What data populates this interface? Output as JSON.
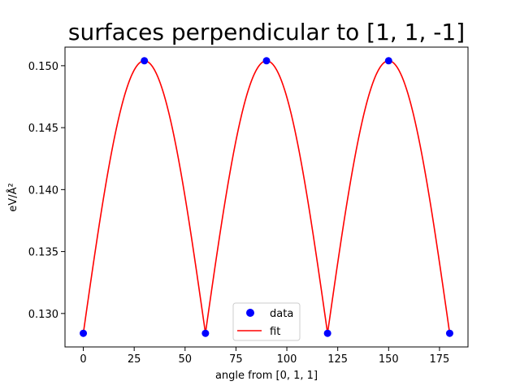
{
  "chart_data": {
    "type": "scatter+line",
    "title": "surfaces perpendicular to [1, 1, -1]",
    "xlabel": "angle from [0, 1, 1]",
    "ylabel": "eV/Å²",
    "xlim": [
      -9,
      189
    ],
    "ylim": [
      0.1273,
      0.1515
    ],
    "xticks": [
      0,
      25,
      50,
      75,
      100,
      125,
      150,
      175
    ],
    "yticks": [
      0.13,
      0.135,
      0.14,
      0.145,
      0.15
    ],
    "ytick_labels": [
      "0.130",
      "0.135",
      "0.140",
      "0.145",
      "0.150"
    ],
    "grid": false,
    "legend_position": "lower center",
    "series": [
      {
        "name": "data",
        "kind": "scatter",
        "color": "#0000ff",
        "x": [
          0,
          30,
          60,
          90,
          120,
          150,
          180
        ],
        "y": [
          0.1284,
          0.1504,
          0.1284,
          0.1504,
          0.1284,
          0.1504,
          0.1284
        ]
      },
      {
        "name": "fit",
        "kind": "line",
        "color": "#ff0000",
        "period": 60,
        "y_min": 0.1284,
        "y_max": 0.1504,
        "x_range": [
          0,
          180
        ]
      }
    ]
  }
}
